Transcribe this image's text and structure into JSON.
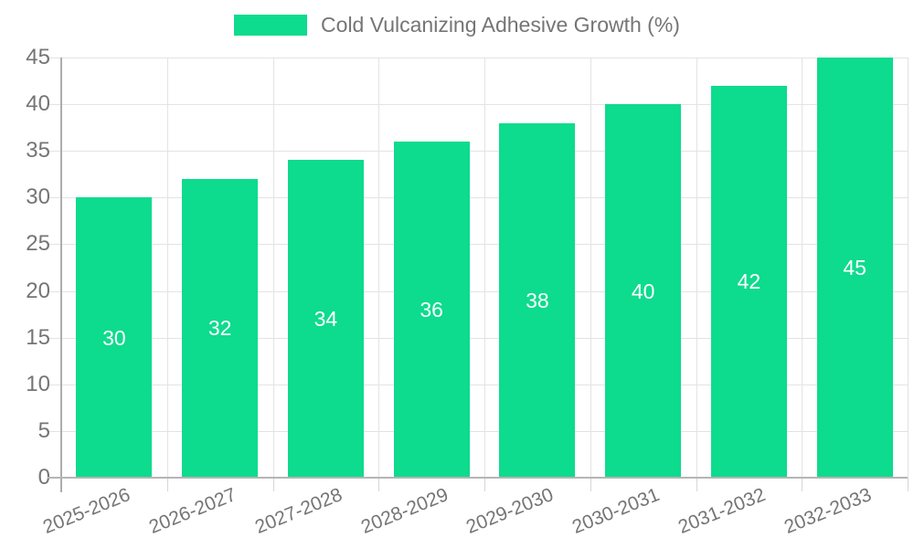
{
  "legend": {
    "label": "Cold Vulcanizing Adhesive Growth (%)"
  },
  "chart_data": {
    "type": "bar",
    "title": "Cold Vulcanizing Adhesive Growth (%)",
    "categories": [
      "2025-2026",
      "2026-2027",
      "2027-2028",
      "2028-2029",
      "2029-2030",
      "2030-2031",
      "2031-2032",
      "2032-2033"
    ],
    "values": [
      30,
      32,
      34,
      36,
      38,
      40,
      42,
      45
    ],
    "series_name": "Cold Vulcanizing Adhesive Growth (%)",
    "xlabel": "",
    "ylabel": "",
    "ylim": [
      0,
      45
    ],
    "yticks": [
      0,
      5,
      10,
      15,
      20,
      25,
      30,
      35,
      40,
      45
    ],
    "grid": true,
    "legend_position": "top",
    "bar_color": "#0ddb8d",
    "bar_label_color": "#ffffff",
    "axis_text_color": "#757575"
  }
}
